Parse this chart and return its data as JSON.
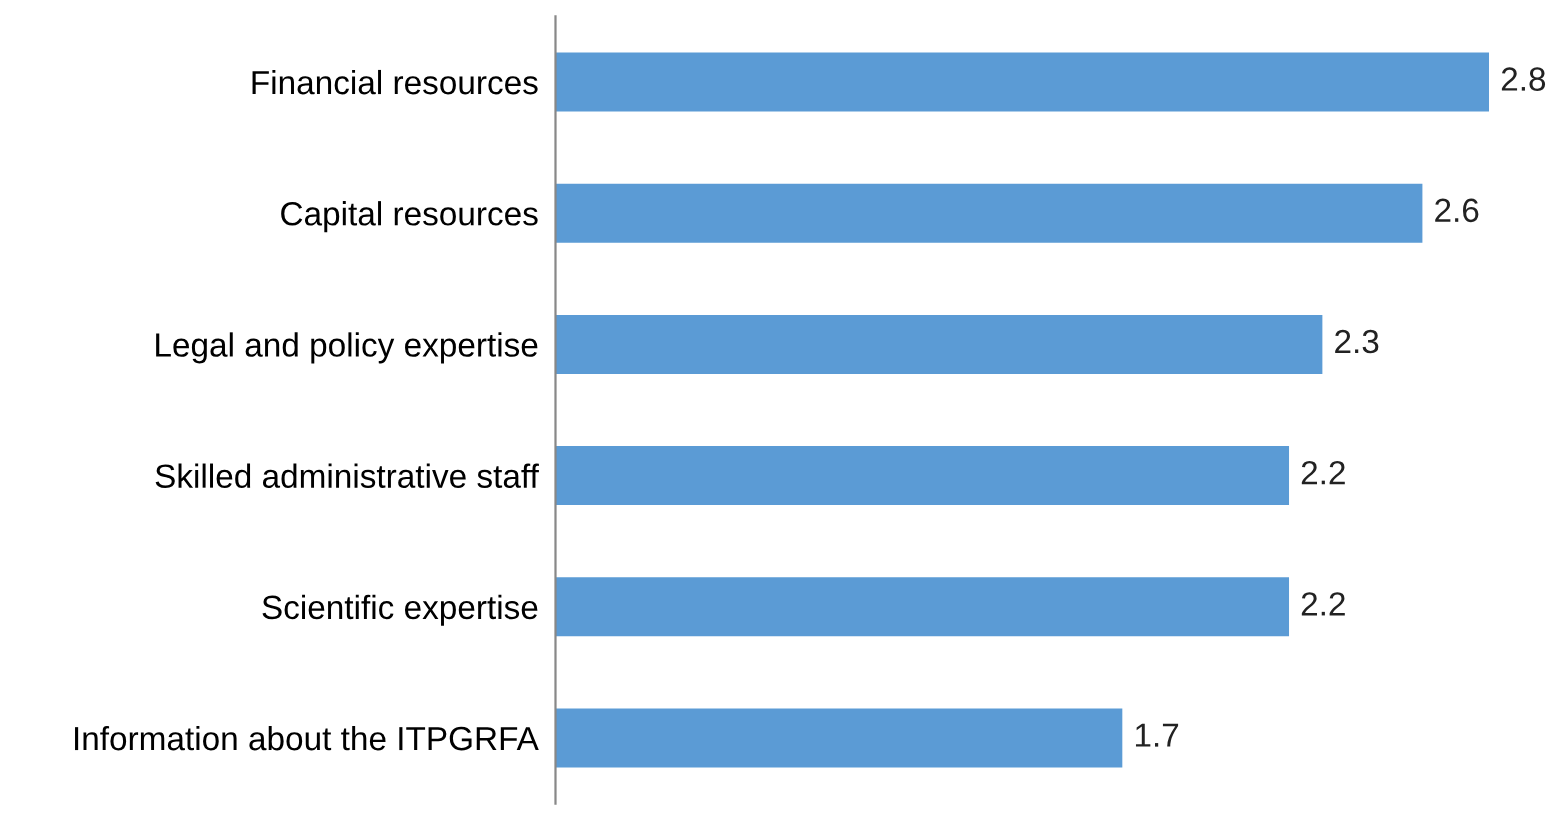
{
  "chart_data": {
    "type": "bar",
    "orientation": "horizontal",
    "categories": [
      "Financial resources",
      "Capital resources",
      "Legal and policy expertise",
      "Skilled administrative staff",
      "Scientific expertise",
      "Information about the ITPGRFA"
    ],
    "values": [
      2.8,
      2.6,
      2.3,
      2.2,
      2.2,
      1.7
    ],
    "color": "#5b9bd5",
    "data_labels": true,
    "grid": false,
    "legend": false
  }
}
